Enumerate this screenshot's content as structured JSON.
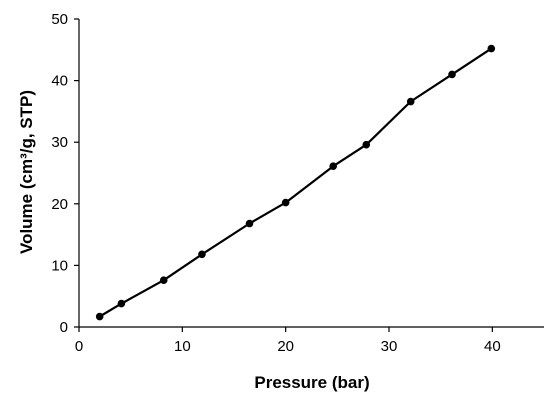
{
  "chart_data": {
    "type": "line",
    "xlabel": "Pressure (bar)",
    "ylabel": "Volume  (cm³/g, STP)",
    "xlim": [
      0,
      45
    ],
    "ylim": [
      0,
      50
    ],
    "xticks": [
      0,
      10,
      20,
      30,
      40
    ],
    "yticks": [
      0,
      10,
      20,
      30,
      40,
      50
    ],
    "grid": false,
    "series": [
      {
        "color": "#000000",
        "marker": "circle",
        "x": [
          2.0,
          4.1,
          8.2,
          11.9,
          16.5,
          20.0,
          24.6,
          27.8,
          32.1,
          36.1,
          39.9
        ],
        "y": [
          1.7,
          3.8,
          7.6,
          11.8,
          16.8,
          20.2,
          26.1,
          29.6,
          36.6,
          41.0,
          45.2
        ]
      }
    ]
  }
}
